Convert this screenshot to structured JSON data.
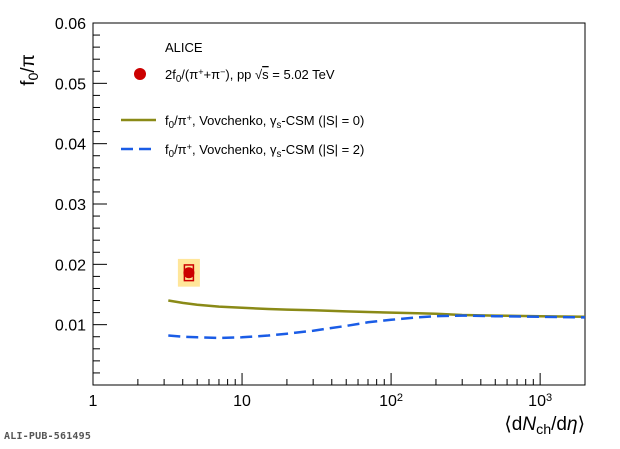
{
  "chart_data": {
    "type": "line",
    "title": "ALICE",
    "xlabel": "⟨dN_ch/dη⟩",
    "ylabel": "f_0/π",
    "xscale": "log",
    "xlim": [
      1,
      2000
    ],
    "ylim": [
      0,
      0.06
    ],
    "x_ticks": [
      {
        "value": 1,
        "label": "1"
      },
      {
        "value": 10,
        "label": "10"
      },
      {
        "value": 100,
        "label": "10",
        "exp": "2"
      },
      {
        "value": 1000,
        "label": "10",
        "exp": "3"
      }
    ],
    "y_ticks": [
      {
        "value": 0.01,
        "label": "0.01"
      },
      {
        "value": 0.02,
        "label": "0.02"
      },
      {
        "value": 0.03,
        "label": "0.03"
      },
      {
        "value": 0.04,
        "label": "0.04"
      },
      {
        "value": 0.05,
        "label": "0.05"
      },
      {
        "value": 0.06,
        "label": "0.06"
      }
    ],
    "legend_position": "top-left",
    "series": [
      {
        "name": "2f₀/(π⁺+π⁻), pp √s = 5.02 TeV",
        "kind": "data-point",
        "color": "#cc0000",
        "points": [
          {
            "x": 4.4,
            "y": 0.0186,
            "sys_y": 0.0023,
            "uncorr_y": 0.0013
          }
        ]
      },
      {
        "name": "f₀/π⁺, Vovchenko, γs-CSM (|S| = 0)",
        "kind": "line",
        "color": "#8a8a17",
        "dash": "solid",
        "x": [
          3.2,
          4,
          5,
          7,
          10,
          15,
          20,
          30,
          50,
          70,
          100,
          150,
          200,
          300,
          500,
          1000,
          2000
        ],
        "y": [
          0.014,
          0.0136,
          0.0133,
          0.013,
          0.0128,
          0.0126,
          0.0125,
          0.0124,
          0.0122,
          0.0121,
          0.012,
          0.0119,
          0.0118,
          0.0116,
          0.0115,
          0.0114,
          0.0113
        ]
      },
      {
        "name": "f₀/π⁺, Vovchenko, γs-CSM (|S| = 2)",
        "kind": "line",
        "color": "#1a5ce6",
        "dash": "dashed",
        "x": [
          3.2,
          4,
          5,
          7,
          10,
          15,
          20,
          30,
          50,
          70,
          100,
          150,
          200,
          300,
          500,
          1000,
          2000
        ],
        "y": [
          0.0082,
          0.008,
          0.0079,
          0.0078,
          0.0079,
          0.0082,
          0.0085,
          0.009,
          0.0098,
          0.0104,
          0.0108,
          0.0112,
          0.0114,
          0.0115,
          0.0114,
          0.0113,
          0.0112
        ]
      }
    ],
    "legend": {
      "experiment": "ALICE",
      "entries": [
        {
          "parts": [
            "2f",
            "0",
            "/(π",
            "+",
            "+π",
            "−",
            "), pp ",
            "√",
            "s",
            " = 5.02 TeV"
          ]
        },
        {
          "parts": [
            "f",
            "0",
            "/π",
            "+",
            ", Vovchenko, γ",
            "s",
            "-CSM (|S| = 0)"
          ]
        },
        {
          "parts": [
            "f",
            "0",
            "/π",
            "+",
            ", Vovchenko, γ",
            "s",
            "-CSM (|S| = 2)"
          ]
        }
      ]
    },
    "axis_title_parts": {
      "y": [
        "f",
        "0",
        "/π"
      ],
      "x": [
        "⟨d",
        "N",
        "ch",
        "/d",
        "η",
        "⟩"
      ]
    },
    "colors": {
      "sys_box": "#ffe69a",
      "uncorr_box": "#cc0000"
    }
  },
  "footer": {
    "pub_id": "ALI-PUB-561495"
  }
}
